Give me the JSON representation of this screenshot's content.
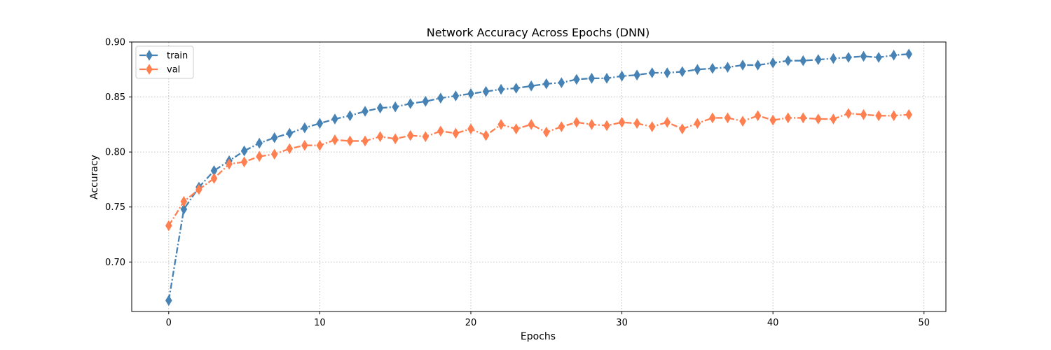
{
  "chart_data": {
    "type": "line",
    "title": "Network Accuracy Across Epochs (DNN)",
    "xlabel": "Epochs",
    "ylabel": "Accuracy",
    "xlim": [
      -2.45,
      51.45
    ],
    "ylim": [
      0.655,
      0.9
    ],
    "xticks": [
      0,
      10,
      20,
      30,
      40,
      50
    ],
    "yticks": [
      0.7,
      0.75,
      0.8,
      0.85,
      0.9
    ],
    "grid": true,
    "legend_position": "upper left",
    "x": [
      0,
      1,
      2,
      3,
      4,
      5,
      6,
      7,
      8,
      9,
      10,
      11,
      12,
      13,
      14,
      15,
      16,
      17,
      18,
      19,
      20,
      21,
      22,
      23,
      24,
      25,
      26,
      27,
      28,
      29,
      30,
      31,
      32,
      33,
      34,
      35,
      36,
      37,
      38,
      39,
      40,
      41,
      42,
      43,
      44,
      45,
      46,
      47,
      48,
      49
    ],
    "series": [
      {
        "name": "train",
        "color": "#4682b4",
        "line_style": "dashdot",
        "marker": "thin-diamond",
        "values": [
          0.665,
          0.748,
          0.768,
          0.783,
          0.792,
          0.801,
          0.808,
          0.813,
          0.817,
          0.822,
          0.826,
          0.83,
          0.833,
          0.837,
          0.84,
          0.841,
          0.844,
          0.846,
          0.849,
          0.851,
          0.853,
          0.855,
          0.857,
          0.858,
          0.86,
          0.862,
          0.863,
          0.866,
          0.867,
          0.867,
          0.869,
          0.87,
          0.872,
          0.872,
          0.873,
          0.875,
          0.876,
          0.877,
          0.879,
          0.879,
          0.881,
          0.883,
          0.883,
          0.884,
          0.885,
          0.886,
          0.887,
          0.886,
          0.888,
          0.889
        ]
      },
      {
        "name": "val",
        "color": "#ff7f50",
        "line_style": "dashdot",
        "marker": "thin-diamond",
        "values": [
          0.733,
          0.755,
          0.766,
          0.776,
          0.789,
          0.791,
          0.796,
          0.798,
          0.803,
          0.806,
          0.806,
          0.811,
          0.81,
          0.81,
          0.814,
          0.812,
          0.815,
          0.814,
          0.819,
          0.817,
          0.821,
          0.815,
          0.825,
          0.821,
          0.825,
          0.818,
          0.823,
          0.827,
          0.825,
          0.824,
          0.827,
          0.826,
          0.823,
          0.827,
          0.821,
          0.826,
          0.831,
          0.831,
          0.828,
          0.833,
          0.829,
          0.831,
          0.831,
          0.83,
          0.83,
          0.835,
          0.834,
          0.833,
          0.833,
          0.834
        ]
      }
    ]
  }
}
